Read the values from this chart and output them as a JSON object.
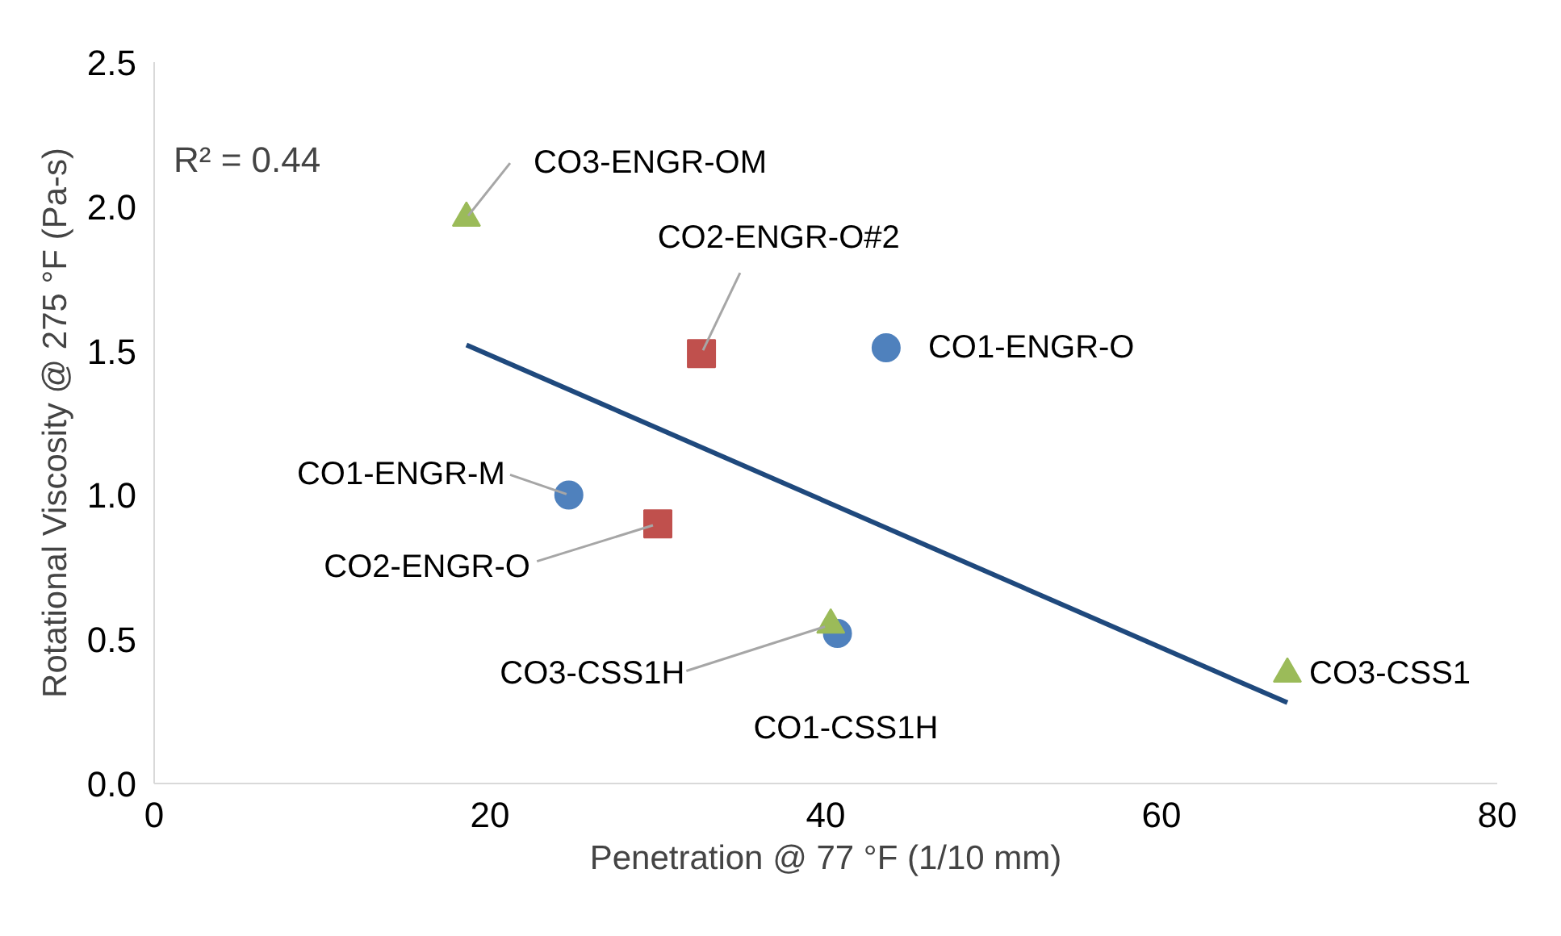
{
  "chart_data": {
    "type": "scatter",
    "xlabel": "Penetration @ 77 °F (1/10 mm)",
    "ylabel": "Rotational Viscosity @ 275 °F (Pa-s)",
    "xlim": [
      0,
      80
    ],
    "xticks": [
      0,
      20,
      40,
      60,
      80
    ],
    "ylim": [
      0,
      2.5
    ],
    "yticks": [
      {
        "value": 0,
        "label": "0.0"
      },
      {
        "value": 0.5,
        "label": "0.5"
      },
      {
        "value": 1,
        "label": "1.0"
      },
      {
        "value": 1.5,
        "label": "1.5"
      },
      {
        "value": 2,
        "label": "2.0"
      },
      {
        "value": 2.5,
        "label": "2.5"
      }
    ],
    "grid": false,
    "series": [
      {
        "color": "#4f81bd",
        "marker": "circle",
        "x": [
          43.6,
          24.7,
          40.7
        ],
        "values": [
          1.51,
          1.0,
          0.52
        ]
      },
      {
        "color": "#c0504d",
        "marker": "square",
        "x": [
          32.6,
          30.0
        ],
        "values": [
          1.49,
          0.9
        ]
      },
      {
        "color": "#9bbb59",
        "marker": "triangle",
        "x": [
          18.6,
          40.3,
          67.5
        ],
        "values": [
          1.96,
          0.55,
          0.38
        ]
      },
      {
        "type": "line",
        "color": "#1f497d",
        "marker": "none",
        "x": [
          18.6,
          67.5
        ],
        "values": [
          1.52,
          0.28
        ]
      }
    ],
    "annotations": [
      "R² = 0.44",
      {
        "text": "CO1-ENGR-O",
        "x": 43.6,
        "y": 1.51
      },
      {
        "text": "CO1-ENGR-M",
        "x": 24.7,
        "y": 1.0
      },
      {
        "text": "CO1-CSS1H",
        "x": 40.7,
        "y": 0.52
      },
      {
        "text": "CO2-ENGR-O#2",
        "x": 32.6,
        "y": 1.49
      },
      {
        "text": "CO2-ENGR-O",
        "x": 30.0,
        "y": 0.9
      },
      {
        "text": "CO3-ENGR-OM",
        "x": 18.6,
        "y": 1.96
      },
      {
        "text": "CO3-CSS1H",
        "x": 40.3,
        "y": 0.55
      },
      {
        "text": "CO3-CSS1",
        "x": 67.5,
        "y": 0.38
      }
    ]
  }
}
